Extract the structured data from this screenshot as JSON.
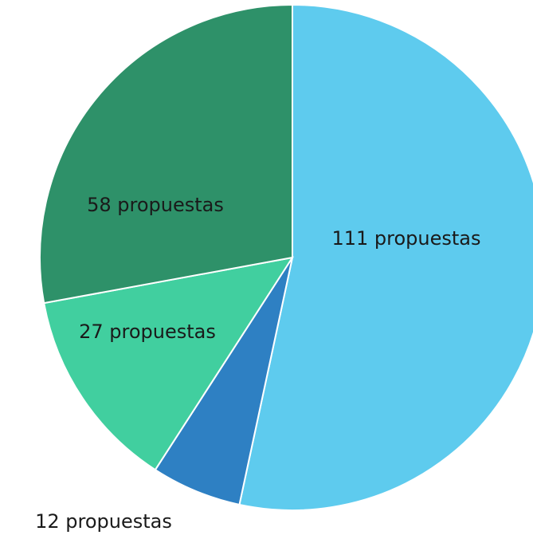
{
  "chart_data": {
    "type": "pie",
    "values": [
      111,
      12,
      27,
      58
    ],
    "value_labels": [
      "111 propuestas",
      "12 propuestas",
      "27 propuestas",
      "58 propuestas"
    ],
    "colors": [
      "#5ecbee",
      "#2e80c3",
      "#41cf9f",
      "#2e9169"
    ]
  }
}
